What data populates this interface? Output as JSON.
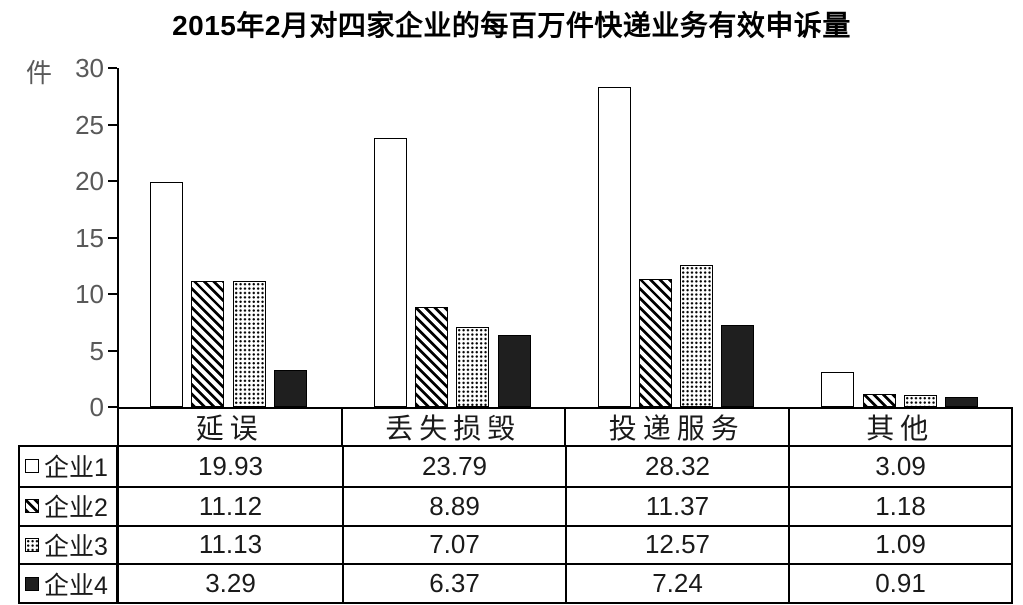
{
  "title": "2015年2月对四家企业的每百万件快递业务有效申诉量",
  "unit_label": "件",
  "chart_data": {
    "type": "bar",
    "title": "2015年2月对四家企业的每百万件快递业务有效申诉量",
    "ylabel": "件",
    "xlabel": "",
    "ylim": [
      0,
      30
    ],
    "yticks": [
      0,
      5,
      10,
      15,
      20,
      25,
      30
    ],
    "grid": false,
    "legend_position": "table-left",
    "categories": [
      "延误",
      "丢失损毁",
      "投递服务",
      "其他"
    ],
    "series": [
      {
        "name": "企业1",
        "pattern": "white",
        "values": [
          19.93,
          23.79,
          28.32,
          3.09
        ]
      },
      {
        "name": "企业2",
        "pattern": "diagonal-hatch",
        "values": [
          11.12,
          8.89,
          11.37,
          1.18
        ]
      },
      {
        "name": "企业3",
        "pattern": "dots",
        "values": [
          11.13,
          7.07,
          12.57,
          1.09
        ]
      },
      {
        "name": "企业4",
        "pattern": "solid-black",
        "values": [
          3.29,
          6.37,
          7.24,
          0.91
        ]
      }
    ]
  },
  "table": {
    "column_headers": [
      "延误",
      "丢失损毁",
      "投递服务",
      "其他"
    ],
    "rows": [
      {
        "legend": "企业1",
        "values": [
          "19.93",
          "23.79",
          "28.32",
          "3.09"
        ]
      },
      {
        "legend": "企业2",
        "values": [
          "11.12",
          "8.89",
          "11.37",
          "1.18"
        ]
      },
      {
        "legend": "企业3",
        "values": [
          "11.13",
          "7.07",
          "12.57",
          "1.09"
        ]
      },
      {
        "legend": "企业4",
        "values": [
          "3.29",
          "6.37",
          "7.24",
          "0.91"
        ]
      }
    ]
  },
  "colors": {
    "axis_text": "#595959",
    "border": "#000000",
    "solid_bar": "#1f1f1f",
    "background": "#ffffff"
  }
}
